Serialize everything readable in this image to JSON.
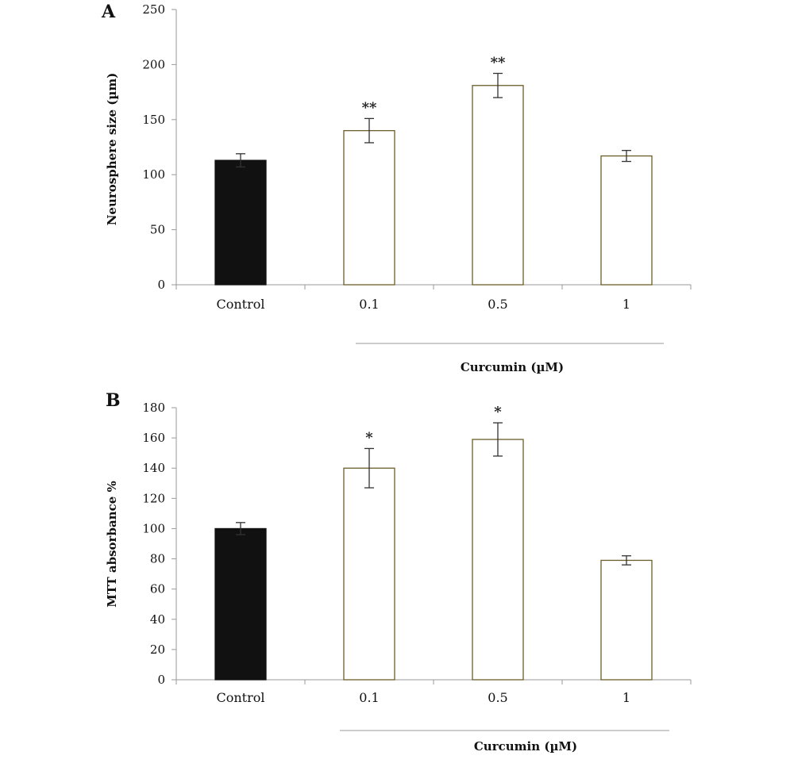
{
  "chart_data": [
    {
      "type": "bar",
      "panel_label": "A",
      "title": "",
      "ylabel": "Neurosphere size (µm)",
      "xlabel": "",
      "ylim": [
        0,
        250
      ],
      "yticks": [
        0,
        50,
        100,
        150,
        200,
        250
      ],
      "categories": [
        "Control",
        "0.1",
        "0.5",
        "1"
      ],
      "values": [
        113,
        140,
        181,
        117
      ],
      "errors": [
        6,
        11,
        11,
        5
      ],
      "significance": [
        "",
        "**",
        "**",
        ""
      ],
      "fills": [
        "#111111",
        "#ffffff",
        "#ffffff",
        "#ffffff"
      ],
      "group_label": "Curcumin (µM)",
      "grid": false
    },
    {
      "type": "bar",
      "panel_label": "B",
      "title": "",
      "ylabel": "MTT absorbance %",
      "xlabel": "",
      "ylim": [
        0,
        180
      ],
      "yticks": [
        0,
        20,
        40,
        60,
        80,
        100,
        120,
        140,
        160,
        180
      ],
      "categories": [
        "Control",
        "0.1",
        "0.5",
        "1"
      ],
      "values": [
        100,
        140,
        159,
        79
      ],
      "errors": [
        4,
        13,
        11,
        3
      ],
      "significance": [
        "",
        "*",
        "*",
        ""
      ],
      "fills": [
        "#111111",
        "#ffffff",
        "#ffffff",
        "#ffffff"
      ],
      "group_label": "Curcumin (µM)",
      "grid": false
    }
  ]
}
